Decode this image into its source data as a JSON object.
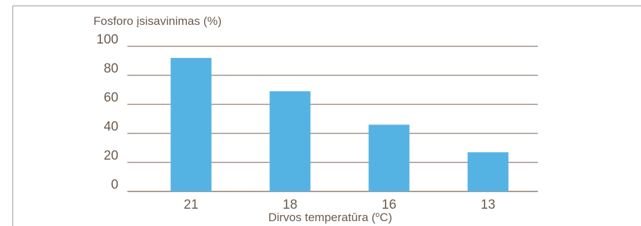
{
  "chart_data": {
    "type": "bar",
    "title": "",
    "ylabel": "Fosforo įsisavinimas (%)",
    "xlabel": "Dirvos temperatūra (",
    "xlabel_unit_sup": "o",
    "xlabel_unit_tail": "C)",
    "categories": [
      "21",
      "18",
      "16",
      "13"
    ],
    "values": [
      92,
      69,
      46,
      27
    ],
    "ylim": [
      0,
      100
    ],
    "yticks": [
      "0",
      "20",
      "40",
      "60",
      "80",
      "100"
    ],
    "grid": true,
    "bar_color": "#55b3e3",
    "grid_color": "#8c7b70",
    "text_color": "#6b5a4e"
  }
}
